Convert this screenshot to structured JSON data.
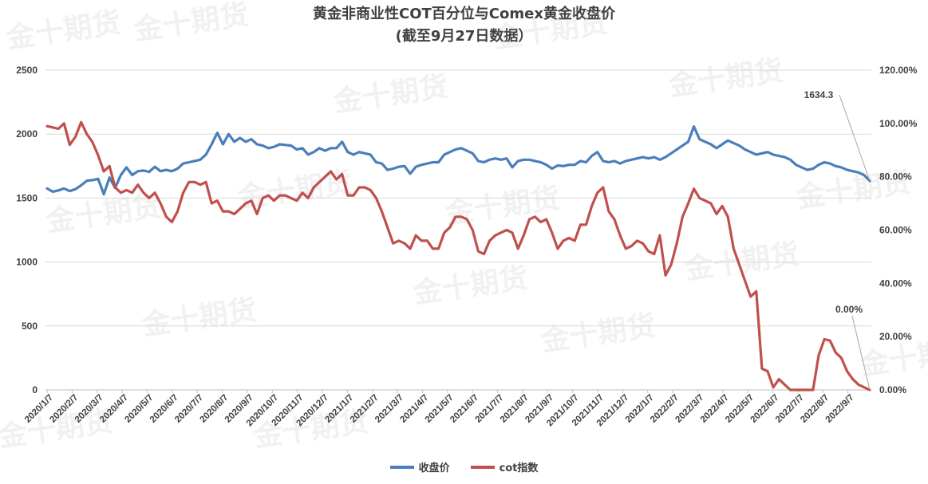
{
  "title_line1": "黄金非商业性COT百分位与Comex黄金收盘价",
  "title_line2": "(截至9月27日数据）",
  "watermark_text": "金十期货",
  "chart_data": {
    "type": "line",
    "x_labels": [
      "2020/1/7",
      "2020/2/7",
      "2020/3/7",
      "2020/4/7",
      "2020/5/7",
      "2020/6/7",
      "2020/7/7",
      "2020/8/7",
      "2020/9/7",
      "2020/10/7",
      "2020/11/7",
      "2020/12/7",
      "2021/1/7",
      "2021/2/7",
      "2021/3/7",
      "2021/4/7",
      "2021/5/7",
      "2021/6/7",
      "2021/7/7",
      "2021/8/7",
      "2021/9/7",
      "2021/10/7",
      "2021/11/7",
      "2021/12/7",
      "2022/1/7",
      "2022/2/7",
      "2022/3/7",
      "2022/4/7",
      "2022/5/7",
      "2022/6/7",
      "2022/7/7",
      "2022/8/7",
      "2022/9/7"
    ],
    "left_axis": {
      "min": 0,
      "max": 2500,
      "ticks": [
        "0",
        "500",
        "1000",
        "1500",
        "2000",
        "2500"
      ]
    },
    "right_axis": {
      "min": 0,
      "max": 1.2,
      "ticks": [
        "0.00%",
        "20.00%",
        "40.00%",
        "60.00%",
        "80.00%",
        "100.00%",
        "120.00%"
      ]
    },
    "grid": "horizontal",
    "legend_position": "bottom",
    "series": [
      {
        "name": "收盘价",
        "axis": "left",
        "color": "#4a7ebb",
        "values": [
          1575,
          1550,
          1560,
          1575,
          1555,
          1570,
          1600,
          1635,
          1640,
          1650,
          1530,
          1660,
          1580,
          1680,
          1740,
          1680,
          1710,
          1715,
          1705,
          1745,
          1710,
          1720,
          1710,
          1730,
          1770,
          1780,
          1790,
          1800,
          1840,
          1920,
          2010,
          1920,
          2000,
          1940,
          1970,
          1940,
          1960,
          1920,
          1910,
          1890,
          1900,
          1920,
          1915,
          1910,
          1880,
          1890,
          1840,
          1860,
          1890,
          1870,
          1890,
          1890,
          1940,
          1860,
          1840,
          1860,
          1850,
          1840,
          1780,
          1770,
          1720,
          1730,
          1745,
          1750,
          1690,
          1745,
          1760,
          1770,
          1780,
          1780,
          1840,
          1860,
          1880,
          1890,
          1870,
          1850,
          1790,
          1780,
          1800,
          1810,
          1800,
          1810,
          1740,
          1790,
          1800,
          1800,
          1790,
          1780,
          1760,
          1730,
          1755,
          1750,
          1760,
          1760,
          1790,
          1780,
          1830,
          1860,
          1790,
          1780,
          1790,
          1770,
          1790,
          1800,
          1810,
          1820,
          1810,
          1820,
          1800,
          1820,
          1850,
          1880,
          1910,
          1940,
          2060,
          1960,
          1940,
          1920,
          1890,
          1920,
          1950,
          1930,
          1910,
          1880,
          1860,
          1840,
          1850,
          1860,
          1840,
          1830,
          1820,
          1800,
          1760,
          1740,
          1720,
          1730,
          1760,
          1780,
          1770,
          1750,
          1740,
          1720,
          1710,
          1700,
          1680,
          1634.3
        ]
      },
      {
        "name": "cot指数",
        "axis": "right",
        "color": "#c0504d",
        "values": [
          0.99,
          0.985,
          0.98,
          1.0,
          0.92,
          0.95,
          1.005,
          0.96,
          0.93,
          0.88,
          0.82,
          0.84,
          0.76,
          0.74,
          0.75,
          0.74,
          0.77,
          0.74,
          0.72,
          0.74,
          0.7,
          0.65,
          0.63,
          0.67,
          0.74,
          0.78,
          0.78,
          0.77,
          0.78,
          0.7,
          0.71,
          0.67,
          0.67,
          0.66,
          0.68,
          0.7,
          0.71,
          0.66,
          0.72,
          0.73,
          0.71,
          0.73,
          0.73,
          0.72,
          0.71,
          0.74,
          0.72,
          0.76,
          0.78,
          0.8,
          0.82,
          0.79,
          0.81,
          0.73,
          0.73,
          0.76,
          0.76,
          0.75,
          0.72,
          0.67,
          0.61,
          0.55,
          0.56,
          0.55,
          0.53,
          0.58,
          0.56,
          0.56,
          0.53,
          0.53,
          0.59,
          0.61,
          0.65,
          0.65,
          0.64,
          0.6,
          0.52,
          0.51,
          0.56,
          0.58,
          0.59,
          0.6,
          0.59,
          0.53,
          0.58,
          0.64,
          0.65,
          0.63,
          0.64,
          0.59,
          0.53,
          0.56,
          0.57,
          0.56,
          0.62,
          0.62,
          0.69,
          0.74,
          0.76,
          0.67,
          0.64,
          0.58,
          0.53,
          0.54,
          0.56,
          0.55,
          0.52,
          0.51,
          0.58,
          0.43,
          0.47,
          0.55,
          0.65,
          0.7,
          0.755,
          0.72,
          0.71,
          0.7,
          0.66,
          0.69,
          0.65,
          0.53,
          0.47,
          0.41,
          0.35,
          0.37,
          0.08,
          0.07,
          0.01,
          0.04,
          0.02,
          0.0,
          0.0,
          0.0,
          0.0,
          0.0,
          0.13,
          0.19,
          0.185,
          0.14,
          0.12,
          0.07,
          0.04,
          0.02,
          0.01,
          0.0
        ]
      }
    ],
    "annotations": [
      {
        "text": "1634.3",
        "series": "收盘价"
      },
      {
        "text": "0.00%",
        "series": "cot指数"
      }
    ]
  }
}
